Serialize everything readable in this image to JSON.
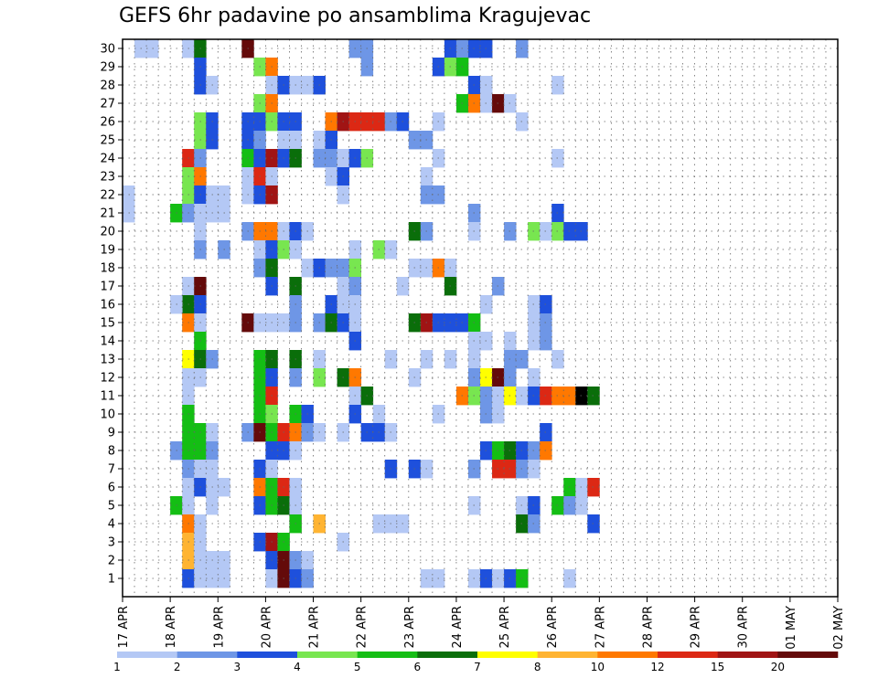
{
  "chart_data": {
    "type": "heatmap",
    "title": "GEFS 6hr padavine po ansamblima Kragujevac",
    "xlabel": "",
    "ylabel": "",
    "members": [
      1,
      2,
      3,
      4,
      5,
      6,
      7,
      8,
      9,
      10,
      11,
      12,
      13,
      14,
      15,
      16,
      17,
      18,
      19,
      20,
      21,
      22,
      23,
      24,
      25,
      26,
      27,
      28,
      29,
      30
    ],
    "x_tick_labels": [
      "17 APR",
      "18 APR",
      "19 APR",
      "20 APR",
      "21 APR",
      "22 APR",
      "23 APR",
      "24 APR",
      "25 APR",
      "26 APR",
      "27 APR",
      "28 APR",
      "29 APR",
      "30 APR",
      "01 MAY",
      "02 MAY"
    ],
    "time_steps_per_day": 4,
    "colorbar": {
      "levels": [
        "1",
        "2",
        "3",
        "4",
        "5",
        "6",
        "7",
        "8",
        "10",
        "12",
        "15",
        "20"
      ],
      "colors": [
        "#b4c8f5",
        "#6e96e6",
        "#1e50dc",
        "#78e650",
        "#14be14",
        "#0a6e0a",
        "#ffff00",
        "#ffb432",
        "#ff7800",
        "#dc2814",
        "#a01414",
        "#640a0a"
      ]
    },
    "grid": true,
    "cells": [
      [
        30,
        1,
        0
      ],
      [
        30,
        2,
        0
      ],
      [
        30,
        5,
        0
      ],
      [
        30,
        6,
        5
      ],
      [
        30,
        10,
        11
      ],
      [
        30,
        19,
        1
      ],
      [
        30,
        20,
        1
      ],
      [
        30,
        27,
        2
      ],
      [
        30,
        28,
        1
      ],
      [
        30,
        29,
        2
      ],
      [
        30,
        30,
        2
      ],
      [
        30,
        33,
        1
      ],
      [
        29,
        6,
        2
      ],
      [
        29,
        11,
        3
      ],
      [
        29,
        12,
        8
      ],
      [
        29,
        20,
        1
      ],
      [
        29,
        26,
        2
      ],
      [
        29,
        27,
        3
      ],
      [
        29,
        28,
        4
      ],
      [
        28,
        6,
        2
      ],
      [
        28,
        7,
        0
      ],
      [
        28,
        12,
        0
      ],
      [
        28,
        13,
        2
      ],
      [
        28,
        14,
        0
      ],
      [
        28,
        15,
        0
      ],
      [
        28,
        16,
        2
      ],
      [
        28,
        29,
        2
      ],
      [
        28,
        30,
        0
      ],
      [
        28,
        36,
        0
      ],
      [
        27,
        11,
        3
      ],
      [
        27,
        12,
        8
      ],
      [
        27,
        28,
        4
      ],
      [
        27,
        29,
        8
      ],
      [
        27,
        30,
        0
      ],
      [
        27,
        31,
        11
      ],
      [
        27,
        32,
        0
      ],
      [
        26,
        6,
        3
      ],
      [
        26,
        7,
        2
      ],
      [
        26,
        10,
        2
      ],
      [
        26,
        11,
        2
      ],
      [
        26,
        12,
        3
      ],
      [
        26,
        13,
        2
      ],
      [
        26,
        14,
        2
      ],
      [
        26,
        17,
        8
      ],
      [
        26,
        18,
        10
      ],
      [
        26,
        19,
        9
      ],
      [
        26,
        20,
        9
      ],
      [
        26,
        21,
        9
      ],
      [
        26,
        22,
        1
      ],
      [
        26,
        23,
        2
      ],
      [
        26,
        26,
        0
      ],
      [
        26,
        33,
        0
      ],
      [
        25,
        6,
        3
      ],
      [
        25,
        7,
        2
      ],
      [
        25,
        10,
        2
      ],
      [
        25,
        11,
        1
      ],
      [
        25,
        13,
        0
      ],
      [
        25,
        14,
        0
      ],
      [
        25,
        16,
        0
      ],
      [
        25,
        17,
        2
      ],
      [
        25,
        24,
        1
      ],
      [
        25,
        25,
        1
      ],
      [
        24,
        5,
        9
      ],
      [
        24,
        6,
        1
      ],
      [
        24,
        10,
        4
      ],
      [
        24,
        11,
        2
      ],
      [
        24,
        12,
        10
      ],
      [
        24,
        13,
        2
      ],
      [
        24,
        14,
        5
      ],
      [
        24,
        16,
        1
      ],
      [
        24,
        17,
        1
      ],
      [
        24,
        18,
        0
      ],
      [
        24,
        19,
        2
      ],
      [
        24,
        20,
        3
      ],
      [
        24,
        26,
        0
      ],
      [
        24,
        36,
        0
      ],
      [
        23,
        5,
        3
      ],
      [
        23,
        6,
        8
      ],
      [
        23,
        10,
        0
      ],
      [
        23,
        11,
        9
      ],
      [
        23,
        12,
        0
      ],
      [
        23,
        17,
        0
      ],
      [
        23,
        18,
        2
      ],
      [
        23,
        25,
        0
      ],
      [
        22,
        0,
        0
      ],
      [
        22,
        5,
        3
      ],
      [
        22,
        6,
        2
      ],
      [
        22,
        7,
        0
      ],
      [
        22,
        8,
        0
      ],
      [
        22,
        10,
        0
      ],
      [
        22,
        11,
        2
      ],
      [
        22,
        12,
        10
      ],
      [
        22,
        18,
        0
      ],
      [
        22,
        25,
        1
      ],
      [
        22,
        26,
        1
      ],
      [
        21,
        0,
        0
      ],
      [
        21,
        4,
        4
      ],
      [
        21,
        5,
        1
      ],
      [
        21,
        6,
        0
      ],
      [
        21,
        7,
        0
      ],
      [
        21,
        8,
        0
      ],
      [
        21,
        29,
        1
      ],
      [
        21,
        36,
        2
      ],
      [
        20,
        6,
        0
      ],
      [
        20,
        10,
        1
      ],
      [
        20,
        11,
        8
      ],
      [
        20,
        12,
        8
      ],
      [
        20,
        13,
        0
      ],
      [
        20,
        14,
        2
      ],
      [
        20,
        15,
        0
      ],
      [
        20,
        24,
        5
      ],
      [
        20,
        25,
        1
      ],
      [
        20,
        29,
        0
      ],
      [
        20,
        32,
        1
      ],
      [
        20,
        34,
        3
      ],
      [
        20,
        35,
        0
      ],
      [
        20,
        36,
        3
      ],
      [
        20,
        37,
        2
      ],
      [
        20,
        38,
        2
      ],
      [
        19,
        6,
        1
      ],
      [
        19,
        8,
        1
      ],
      [
        19,
        11,
        0
      ],
      [
        19,
        12,
        2
      ],
      [
        19,
        13,
        3
      ],
      [
        19,
        14,
        0
      ],
      [
        19,
        19,
        0
      ],
      [
        19,
        21,
        3
      ],
      [
        19,
        22,
        0
      ],
      [
        18,
        11,
        1
      ],
      [
        18,
        12,
        5
      ],
      [
        18,
        15,
        0
      ],
      [
        18,
        16,
        2
      ],
      [
        18,
        17,
        1
      ],
      [
        18,
        18,
        1
      ],
      [
        18,
        19,
        3
      ],
      [
        18,
        24,
        0
      ],
      [
        18,
        25,
        0
      ],
      [
        18,
        26,
        8
      ],
      [
        18,
        27,
        0
      ],
      [
        17,
        5,
        0
      ],
      [
        17,
        6,
        11
      ],
      [
        17,
        12,
        2
      ],
      [
        17,
        14,
        5
      ],
      [
        17,
        18,
        0
      ],
      [
        17,
        19,
        1
      ],
      [
        17,
        23,
        0
      ],
      [
        17,
        27,
        5
      ],
      [
        17,
        31,
        1
      ],
      [
        16,
        5,
        5
      ],
      [
        16,
        6,
        2
      ],
      [
        16,
        4,
        0
      ],
      [
        16,
        14,
        1
      ],
      [
        16,
        17,
        2
      ],
      [
        16,
        18,
        0
      ],
      [
        16,
        19,
        0
      ],
      [
        16,
        30,
        0
      ],
      [
        16,
        34,
        0
      ],
      [
        16,
        35,
        2
      ],
      [
        15,
        5,
        8
      ],
      [
        15,
        6,
        0
      ],
      [
        15,
        10,
        11
      ],
      [
        15,
        11,
        0
      ],
      [
        15,
        12,
        0
      ],
      [
        15,
        13,
        0
      ],
      [
        15,
        14,
        1
      ],
      [
        15,
        16,
        1
      ],
      [
        15,
        17,
        5
      ],
      [
        15,
        18,
        2
      ],
      [
        15,
        19,
        0
      ],
      [
        15,
        24,
        5
      ],
      [
        15,
        25,
        10
      ],
      [
        15,
        26,
        2
      ],
      [
        15,
        27,
        2
      ],
      [
        15,
        28,
        2
      ],
      [
        15,
        29,
        4
      ],
      [
        15,
        34,
        0
      ],
      [
        15,
        35,
        1
      ],
      [
        14,
        6,
        4
      ],
      [
        14,
        19,
        2
      ],
      [
        14,
        29,
        0
      ],
      [
        14,
        30,
        0
      ],
      [
        14,
        32,
        0
      ],
      [
        14,
        34,
        0
      ],
      [
        14,
        35,
        1
      ],
      [
        13,
        5,
        6
      ],
      [
        13,
        6,
        5
      ],
      [
        13,
        7,
        1
      ],
      [
        13,
        11,
        4
      ],
      [
        13,
        12,
        5
      ],
      [
        13,
        14,
        5
      ],
      [
        13,
        16,
        0
      ],
      [
        13,
        22,
        0
      ],
      [
        13,
        25,
        0
      ],
      [
        13,
        27,
        0
      ],
      [
        13,
        29,
        0
      ],
      [
        13,
        32,
        1
      ],
      [
        13,
        33,
        1
      ],
      [
        13,
        36,
        0
      ],
      [
        12,
        5,
        0
      ],
      [
        12,
        6,
        0
      ],
      [
        12,
        11,
        4
      ],
      [
        12,
        12,
        2
      ],
      [
        12,
        14,
        1
      ],
      [
        12,
        16,
        3
      ],
      [
        12,
        18,
        5
      ],
      [
        12,
        19,
        8
      ],
      [
        12,
        24,
        0
      ],
      [
        12,
        29,
        1
      ],
      [
        12,
        30,
        6
      ],
      [
        12,
        31,
        11
      ],
      [
        12,
        32,
        1
      ],
      [
        12,
        34,
        0
      ],
      [
        11,
        5,
        0
      ],
      [
        11,
        11,
        4
      ],
      [
        11,
        12,
        9
      ],
      [
        11,
        19,
        0
      ],
      [
        11,
        20,
        5
      ],
      [
        11,
        28,
        8
      ],
      [
        11,
        29,
        3
      ],
      [
        11,
        30,
        1
      ],
      [
        11,
        31,
        0
      ],
      [
        11,
        32,
        6
      ],
      [
        11,
        33,
        0
      ],
      [
        11,
        34,
        2
      ],
      [
        11,
        35,
        9
      ],
      [
        11,
        36,
        8
      ],
      [
        11,
        37,
        8
      ],
      [
        11,
        38,
        12
      ],
      [
        11,
        39,
        5
      ],
      [
        10,
        5,
        4
      ],
      [
        10,
        11,
        4
      ],
      [
        10,
        12,
        3
      ],
      [
        10,
        14,
        4
      ],
      [
        10,
        15,
        2
      ],
      [
        10,
        19,
        2
      ],
      [
        10,
        21,
        0
      ],
      [
        10,
        26,
        0
      ],
      [
        10,
        30,
        1
      ],
      [
        10,
        31,
        0
      ],
      [
        9,
        5,
        4
      ],
      [
        9,
        6,
        4
      ],
      [
        9,
        7,
        0
      ],
      [
        9,
        10,
        1
      ],
      [
        9,
        11,
        11
      ],
      [
        9,
        12,
        4
      ],
      [
        9,
        13,
        9
      ],
      [
        9,
        14,
        8
      ],
      [
        9,
        15,
        1
      ],
      [
        9,
        16,
        0
      ],
      [
        9,
        18,
        0
      ],
      [
        9,
        20,
        2
      ],
      [
        9,
        21,
        2
      ],
      [
        9,
        22,
        0
      ],
      [
        9,
        35,
        2
      ],
      [
        8,
        4,
        1
      ],
      [
        8,
        5,
        4
      ],
      [
        8,
        6,
        4
      ],
      [
        8,
        7,
        1
      ],
      [
        8,
        12,
        2
      ],
      [
        8,
        13,
        2
      ],
      [
        8,
        14,
        0
      ],
      [
        8,
        30,
        2
      ],
      [
        8,
        31,
        4
      ],
      [
        8,
        32,
        5
      ],
      [
        8,
        33,
        2
      ],
      [
        8,
        34,
        1
      ],
      [
        8,
        35,
        8
      ],
      [
        7,
        5,
        1
      ],
      [
        7,
        6,
        0
      ],
      [
        7,
        7,
        0
      ],
      [
        7,
        11,
        2
      ],
      [
        7,
        12,
        0
      ],
      [
        7,
        22,
        2
      ],
      [
        7,
        24,
        2
      ],
      [
        7,
        25,
        0
      ],
      [
        7,
        29,
        1
      ],
      [
        7,
        31,
        9
      ],
      [
        7,
        32,
        9
      ],
      [
        7,
        33,
        1
      ],
      [
        7,
        34,
        0
      ],
      [
        6,
        5,
        0
      ],
      [
        6,
        6,
        2
      ],
      [
        6,
        7,
        0
      ],
      [
        6,
        8,
        0
      ],
      [
        6,
        11,
        8
      ],
      [
        6,
        12,
        4
      ],
      [
        6,
        13,
        9
      ],
      [
        6,
        14,
        0
      ],
      [
        6,
        37,
        4
      ],
      [
        6,
        38,
        0
      ],
      [
        6,
        39,
        9
      ],
      [
        5,
        4,
        4
      ],
      [
        5,
        5,
        0
      ],
      [
        5,
        7,
        0
      ],
      [
        5,
        11,
        2
      ],
      [
        5,
        12,
        4
      ],
      [
        5,
        13,
        5
      ],
      [
        5,
        14,
        0
      ],
      [
        5,
        29,
        0
      ],
      [
        5,
        33,
        0
      ],
      [
        5,
        34,
        2
      ],
      [
        5,
        36,
        4
      ],
      [
        5,
        37,
        1
      ],
      [
        5,
        38,
        0
      ],
      [
        4,
        5,
        8
      ],
      [
        4,
        6,
        0
      ],
      [
        4,
        14,
        4
      ],
      [
        4,
        16,
        7
      ],
      [
        4,
        21,
        0
      ],
      [
        4,
        22,
        0
      ],
      [
        4,
        23,
        0
      ],
      [
        4,
        33,
        5
      ],
      [
        4,
        34,
        1
      ],
      [
        4,
        39,
        2
      ],
      [
        3,
        5,
        7
      ],
      [
        3,
        6,
        0
      ],
      [
        3,
        11,
        2
      ],
      [
        3,
        12,
        10
      ],
      [
        3,
        13,
        4
      ],
      [
        3,
        18,
        0
      ],
      [
        2,
        5,
        7
      ],
      [
        2,
        6,
        0
      ],
      [
        2,
        7,
        0
      ],
      [
        2,
        8,
        0
      ],
      [
        2,
        12,
        2
      ],
      [
        2,
        13,
        11
      ],
      [
        2,
        14,
        1
      ],
      [
        2,
        15,
        0
      ],
      [
        1,
        5,
        2
      ],
      [
        1,
        6,
        0
      ],
      [
        1,
        7,
        0
      ],
      [
        1,
        8,
        0
      ],
      [
        1,
        12,
        0
      ],
      [
        1,
        13,
        11
      ],
      [
        1,
        14,
        2
      ],
      [
        1,
        15,
        1
      ],
      [
        1,
        25,
        0
      ],
      [
        1,
        26,
        0
      ],
      [
        1,
        29,
        0
      ],
      [
        1,
        30,
        2
      ],
      [
        1,
        31,
        0
      ],
      [
        1,
        32,
        2
      ],
      [
        1,
        33,
        4
      ],
      [
        1,
        37,
        0
      ]
    ]
  }
}
